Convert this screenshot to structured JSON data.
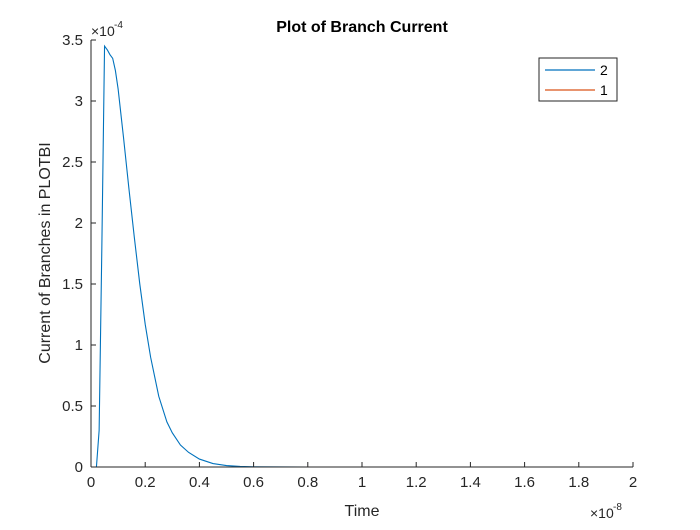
{
  "chart_data": {
    "type": "line",
    "title": "Plot of Branch Current",
    "xlabel": "Time",
    "ylabel": "Current of Branches in PLOTBI",
    "x_exponent": "-8",
    "y_exponent": "-4",
    "xlim": [
      0,
      2
    ],
    "ylim": [
      0,
      3.5
    ],
    "x_ticks": [
      0,
      0.2,
      0.4,
      0.6,
      0.8,
      1,
      1.2,
      1.4,
      1.6,
      1.8,
      2
    ],
    "y_ticks": [
      0,
      0.5,
      1,
      1.5,
      2,
      2.5,
      3,
      3.5
    ],
    "x_tick_labels": [
      "0",
      "0.2",
      "0.4",
      "0.6",
      "0.8",
      "1",
      "1.2",
      "1.4",
      "1.6",
      "1.8",
      "2"
    ],
    "y_tick_labels": [
      "0",
      "0.5",
      "1",
      "1.5",
      "2",
      "2.5",
      "3",
      "3.5"
    ],
    "grid": false,
    "legend_position": "top-right",
    "series": [
      {
        "name": "2",
        "color": "#0072BD",
        "x": [
          0,
          0.01,
          0.02,
          0.03,
          0.04,
          0.05,
          0.06,
          0.07,
          0.08,
          0.09,
          0.1,
          0.12,
          0.14,
          0.16,
          0.18,
          0.2,
          0.22,
          0.25,
          0.28,
          0.3,
          0.33,
          0.36,
          0.4,
          0.45,
          0.5,
          0.55,
          0.6,
          0.7,
          0.8,
          1.0,
          1.5,
          2.0
        ],
        "values": [
          0,
          0,
          0,
          0.3,
          1.8,
          3.45,
          3.42,
          3.38,
          3.35,
          3.25,
          3.1,
          2.7,
          2.28,
          1.88,
          1.5,
          1.17,
          0.9,
          0.58,
          0.37,
          0.28,
          0.18,
          0.12,
          0.065,
          0.028,
          0.012,
          0.005,
          0.002,
          0.0005,
          0,
          0,
          0,
          0
        ]
      },
      {
        "name": "1",
        "color": "#D95319",
        "x": [
          0.03,
          2.0
        ],
        "values": [
          0,
          0
        ]
      }
    ]
  }
}
